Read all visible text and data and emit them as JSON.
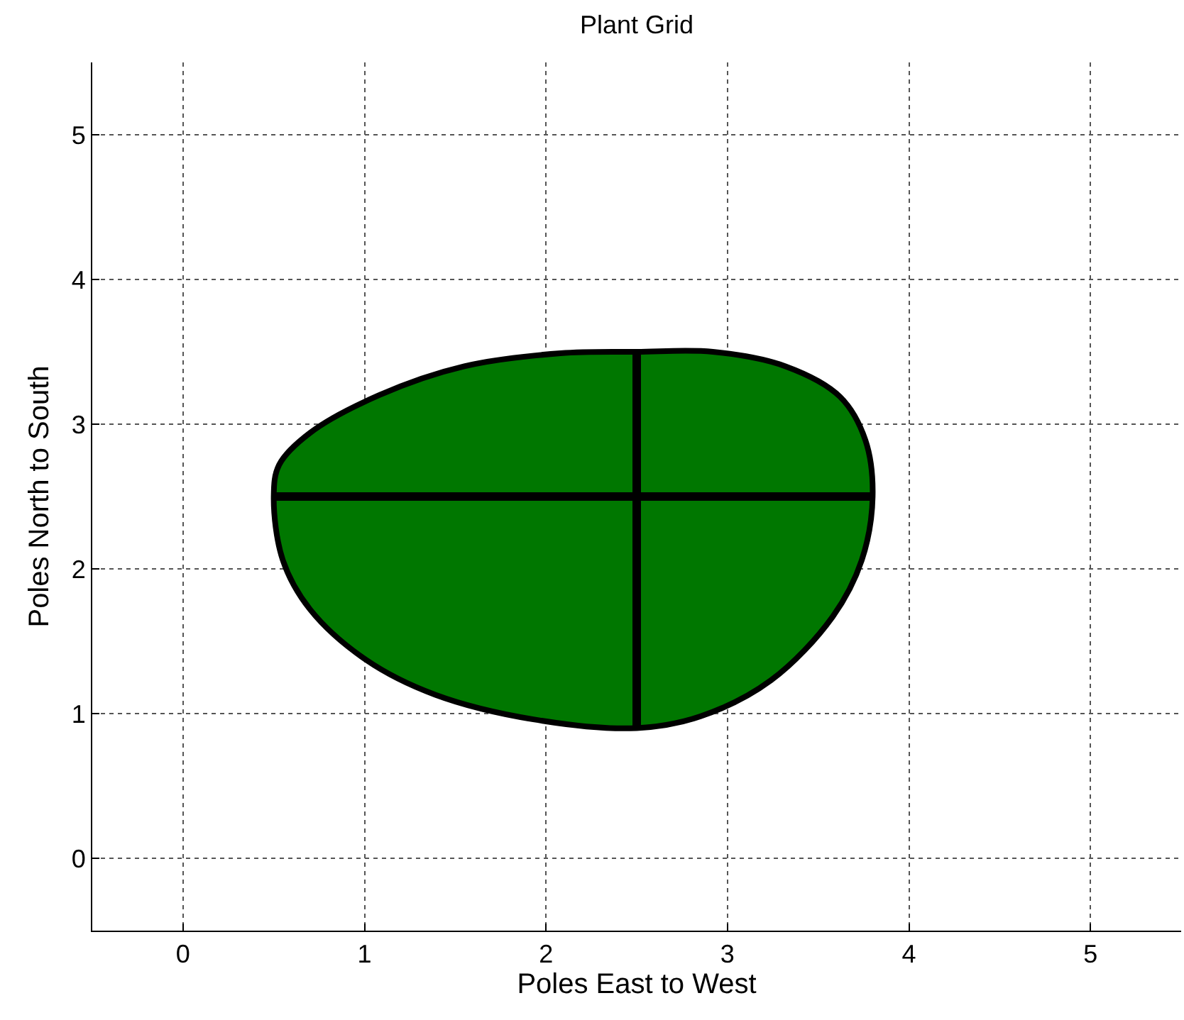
{
  "chart_data": {
    "type": "area",
    "title": "Plant Grid",
    "xlabel": "Poles East to West",
    "ylabel": "Poles North to South",
    "xlim": [
      -0.5,
      5.5
    ],
    "ylim": [
      -0.5,
      5.5
    ],
    "xticks": [
      0,
      1,
      2,
      3,
      4,
      5
    ],
    "yticks": [
      0,
      1,
      2,
      3,
      4,
      5
    ],
    "grid": true,
    "legend": false,
    "series": [
      {
        "color": "#007700",
        "x": [
          2.5,
          2.08,
          1.55,
          1.08,
          0.7,
          0.53,
          0.5,
          0.55,
          0.7,
          1.01,
          1.39,
          1.93,
          2.5,
          2.85,
          3.24,
          3.58,
          3.74,
          3.8,
          3.76,
          3.62,
          3.32,
          2.92,
          2.5
        ],
        "values": [
          3.5,
          3.49,
          3.4,
          3.2,
          2.94,
          2.72,
          2.5,
          2.06,
          1.72,
          1.37,
          1.13,
          0.96,
          0.9,
          0.98,
          1.23,
          1.67,
          2.06,
          2.5,
          2.89,
          3.19,
          3.4,
          3.5,
          3.5
        ]
      },
      {
        "type": "line",
        "color": "#000000",
        "x": [
          0.5,
          2.5,
          3.8
        ],
        "values": [
          2.5,
          2.5,
          2.5
        ]
      },
      {
        "type": "line",
        "color": "#000000",
        "x": [
          2.5,
          2.5,
          2.5
        ],
        "values": [
          0.9,
          2.5,
          3.5
        ]
      }
    ]
  }
}
